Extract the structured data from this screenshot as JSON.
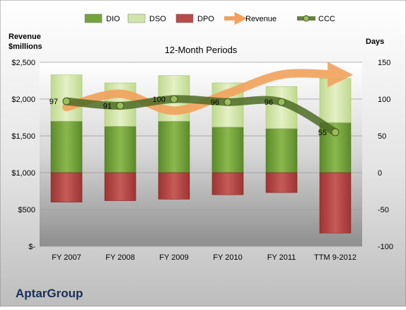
{
  "chart_data": {
    "type": "bar",
    "title": "12-Month Periods",
    "company": "AptarGroup",
    "left_axis_title": [
      "Revenue",
      "$millions"
    ],
    "right_axis_title": "Days",
    "categories": [
      "FY 2007",
      "FY 2008",
      "FY 2009",
      "FY 2010",
      "FY 2011",
      "TTM 9-2012"
    ],
    "left_axis": {
      "ylim": [
        0,
        2500
      ],
      "ticks": [
        0,
        500,
        1000,
        1500,
        2000,
        2500
      ],
      "tick_labels": [
        "$-",
        "$500",
        "$1,000",
        "$1,500",
        "$2,000",
        "$2,500"
      ]
    },
    "right_axis": {
      "ylim": [
        -100,
        150
      ],
      "ticks": [
        -100,
        -50,
        0,
        50,
        100,
        150
      ],
      "tick_labels": [
        "-100",
        "-50",
        "0",
        "50",
        "100",
        "150"
      ]
    },
    "legend": {
      "position": "top",
      "entries": [
        {
          "name": "DIO",
          "color": "#77a33c",
          "kind": "box"
        },
        {
          "name": "DSO",
          "color": "#d2e5a8",
          "kind": "box"
        },
        {
          "name": "DPO",
          "color": "#b84a48",
          "kind": "box"
        },
        {
          "name": "Revenue",
          "color": "#f2a25c",
          "kind": "arrow"
        },
        {
          "name": "CCC",
          "color": "#5b7b2c",
          "kind": "line-dot"
        }
      ]
    },
    "series": [
      {
        "name": "DIO",
        "axis": "right",
        "values": [
          70,
          63,
          70,
          62,
          60,
          68
        ]
      },
      {
        "name": "DSO",
        "axis": "right",
        "values": [
          63,
          59,
          62,
          60,
          57,
          60
        ]
      },
      {
        "name": "DPO",
        "axis": "right",
        "values": [
          -40,
          -38,
          -36,
          -30,
          -27,
          -82
        ]
      },
      {
        "name": "Revenue",
        "axis": "left",
        "values": [
          1892,
          2072,
          1842,
          2077,
          2332,
          2331
        ]
      },
      {
        "name": "CCC",
        "axis": "right",
        "values": [
          97,
          91,
          100,
          96,
          96,
          55
        ],
        "data_labels": [
          "97",
          "91",
          "100",
          "96",
          "96",
          "55"
        ]
      }
    ],
    "colors": {
      "DIO": "#77a33c",
      "DSO": "#d2e5a8",
      "DPO": "#b84a48",
      "Revenue": "#f2a25c",
      "CCC": "#4e6b24",
      "title": "#1a2f58"
    },
    "grid": true
  }
}
